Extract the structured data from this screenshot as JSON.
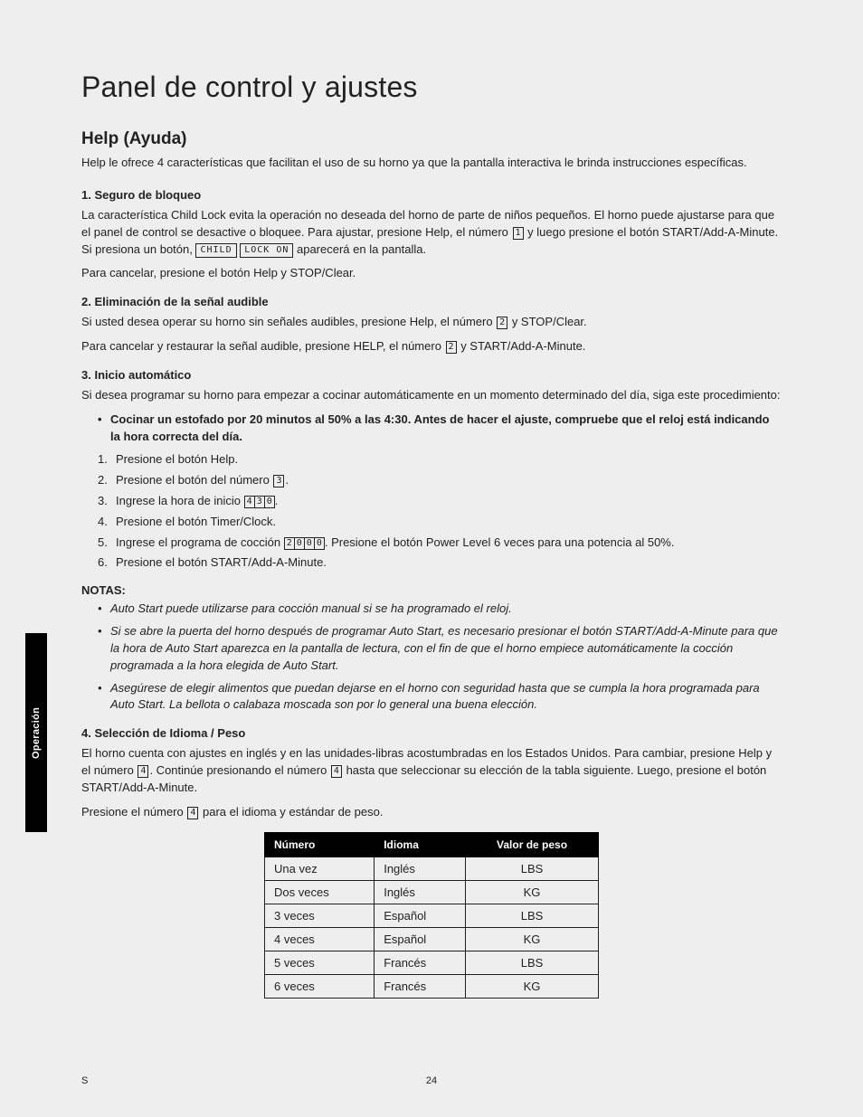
{
  "side_tab": "Operación",
  "page_title": "Panel de control y ajustes",
  "h2": "Help (Ayuda)",
  "intro": "Help le ofrece 4 características que facilitan el uso de su horno ya que la pantalla interactiva le brinda instrucciones específicas.",
  "s1_title": "1. Seguro de bloqueo",
  "s1_p1a": "La característica Child Lock evita la operación  no deseada del horno de parte de niños pequeños. El horno puede ajustarse para que el panel de control se desactive o bloquee. Para ajustar, presione Help, el número ",
  "s1_key1": "1",
  "s1_p1b": " y luego presione el botón START/Add-A-Minute. Si presiona un botón, ",
  "s1_lcd1": "CHILD",
  "s1_lcd2": "LOCK ON",
  "s1_p1c": " aparecerá en la pantalla.",
  "s1_p2": "Para cancelar, presione el botón Help y STOP/Clear.",
  "s2_title": "2. Eliminación de la señal audible",
  "s2_p1a": "Si usted desea operar su horno sin señales audibles, presione Help, el número ",
  "s2_key": "2",
  "s2_p1b": " y STOP/Clear.",
  "s2_p2a": "Para cancelar y restaurar la señal audible, presione HELP, el número ",
  "s2_key2": "2",
  "s2_p2b": " y START/Add-A-Minute.",
  "s3_title": "3. Inicio automático",
  "s3_p1": "Si desea programar su horno para empezar a cocinar automáticamente en un momento determinado del día, siga este procedimiento:",
  "s3_bullet": "Cocinar un estofado por 20 minutos al 50% a las 4:30. Antes de hacer el ajuste, compruebe que el reloj está indicando la hora correcta del día.",
  "s3_steps": {
    "1": "Presione el botón Help.",
    "2a": "Presione el botón del número ",
    "2k": "3",
    "2b": ".",
    "3a": "Ingrese la hora de inicio ",
    "3k": [
      "4",
      "3",
      "0"
    ],
    "3b": ".",
    "4": "Presione el botón Timer/Clock.",
    "5a": "Ingrese el programa de cocción ",
    "5k": [
      "2",
      "0",
      "0",
      "0"
    ],
    "5b": ". Presione el botón Power Level 6 veces para una potencia al 50%.",
    "6": "Presione el botón START/Add-A-Minute."
  },
  "notes_title": "NOTAS:",
  "notes": [
    "Auto Start puede utilizarse para cocción manual si se ha programado el reloj.",
    "Si se abre la puerta del horno después de programar Auto Start, es necesario presionar el botón START/Add-A-Minute para que la hora de Auto Start aparezca en la pantalla de lectura, con el fin de que el horno empiece automáticamente la cocción programada a la hora elegida de Auto Start.",
    "Asegúrese de elegir alimentos que puedan dejarse en el horno con seguridad hasta que se cumpla la hora programada para Auto Start. La bellota o calabaza moscada son por lo general una buena elección."
  ],
  "s4_title": "4. Selección de Idioma / Peso",
  "s4_p1a": "El horno cuenta con ajustes en inglés y en las unidades-libras acostumbradas en los Estados Unidos. Para cambiar, presione Help y el número ",
  "s4_k1": "4",
  "s4_p1b": ". Continúe presionando el número ",
  "s4_k2": "4",
  "s4_p1c": " hasta que seleccionar su elección de la tabla siguiente. Luego, presione el botón START/Add-A-Minute.",
  "s4_p2a": "Presione el número ",
  "s4_k3": "4",
  "s4_p2b": " para el idioma y estándar de peso.",
  "table": {
    "headers": [
      "Número",
      "Idioma",
      "Valor de peso"
    ],
    "rows": [
      [
        "Una vez",
        "Inglés",
        "LBS"
      ],
      [
        "Dos veces",
        "Inglés",
        "KG"
      ],
      [
        "3 veces",
        "Español",
        "LBS"
      ],
      [
        "4 veces",
        "Español",
        "KG"
      ],
      [
        "5 veces",
        "Francés",
        "LBS"
      ],
      [
        "6 veces",
        "Francés",
        "KG"
      ]
    ]
  },
  "footer_left": "S",
  "footer_page": "24"
}
